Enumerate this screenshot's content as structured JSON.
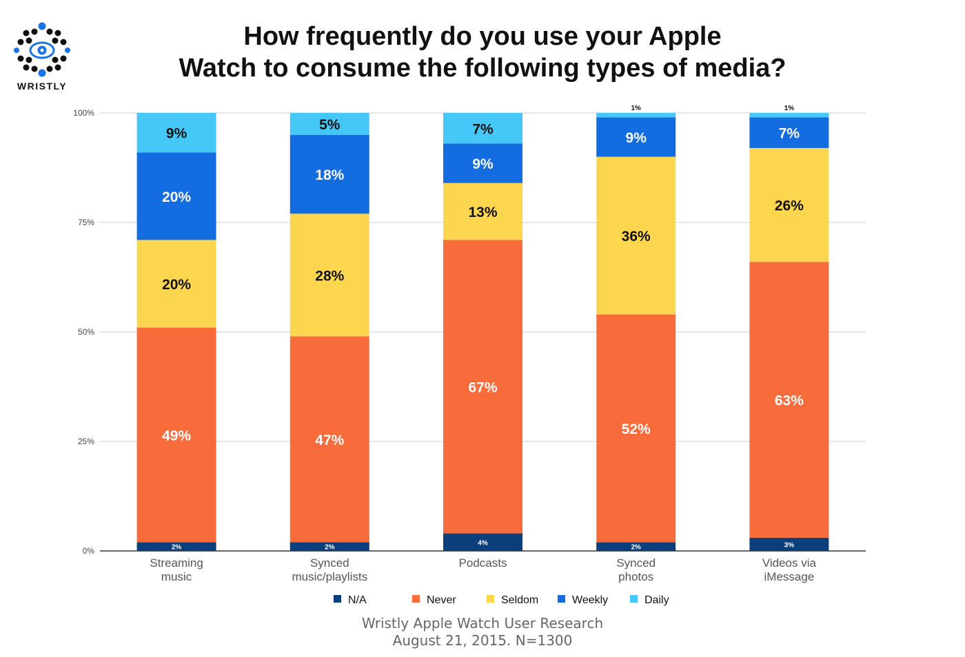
{
  "brand": {
    "name": "WRISTLY",
    "colors": {
      "dark": "#111111",
      "blue": "#1a73e8"
    }
  },
  "title_lines": [
    "How frequently do you use your Apple",
    "Watch to consume the following types of media?"
  ],
  "footer_lines": [
    "Wristly Apple Watch User Research",
    "August 21, 2015. N=1300"
  ],
  "chart_data": {
    "type": "bar",
    "stacked": true,
    "categories": [
      [
        "Streaming",
        "music"
      ],
      [
        "Synced",
        "music/playlists"
      ],
      [
        "Podcasts"
      ],
      [
        "Synced",
        "photos"
      ],
      [
        "Videos via",
        "iMessage"
      ]
    ],
    "series": [
      {
        "name": "N/A",
        "color": "#0b3f7c",
        "values": [
          2,
          2,
          4,
          2,
          3
        ],
        "labels": [
          "2%",
          "2%",
          "4%",
          "2%",
          "3%"
        ]
      },
      {
        "name": "Never",
        "color": "#f86b3a",
        "values": [
          49,
          47,
          67,
          52,
          63
        ],
        "labels": [
          "49%",
          "47%",
          "67%",
          "52%",
          "63%"
        ]
      },
      {
        "name": "Seldom",
        "color": "#fcd64f",
        "values": [
          20,
          28,
          13,
          36,
          26
        ],
        "labels": [
          "20%",
          "28%",
          "13%",
          "36%",
          "26%"
        ]
      },
      {
        "name": "Weekly",
        "color": "#136de0",
        "values": [
          20,
          18,
          9,
          9,
          7
        ],
        "labels": [
          "20%",
          "18%",
          "9%",
          "9%",
          "7%"
        ]
      },
      {
        "name": "Daily",
        "color": "#45c7f7",
        "values": [
          9,
          5,
          7,
          1,
          1
        ],
        "labels": [
          "9%",
          "5%",
          "7%",
          "1%",
          "1%"
        ]
      }
    ],
    "y_ticks": [
      {
        "value": 0,
        "label": "0%"
      },
      {
        "value": 25,
        "label": "25%"
      },
      {
        "value": 50,
        "label": "50%"
      },
      {
        "value": 75,
        "label": "75%"
      },
      {
        "value": 100,
        "label": "100%"
      }
    ],
    "ylim": [
      0,
      100
    ],
    "grid": true,
    "legend_position": "bottom"
  }
}
